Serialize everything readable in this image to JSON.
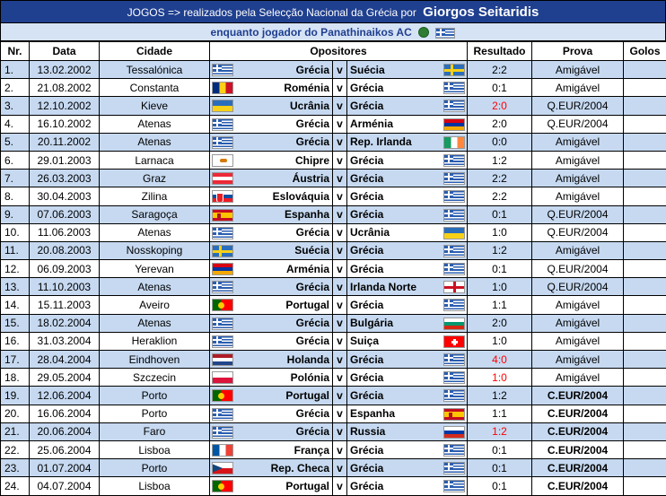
{
  "title": {
    "prefix": "JOGOS => realizados pela Selecção Nacional da Grécia por",
    "player": "Giorgos Seitaridis"
  },
  "subtitle": "enquanto jogador do Panathinaikos AC",
  "headers": {
    "nr": "Nr.",
    "data": "Data",
    "cidade": "Cidade",
    "opositores": "Opositores",
    "resultado": "Resultado",
    "prova": "Prova",
    "golos": "Golos"
  },
  "matches": [
    {
      "nr": "1.",
      "data": "13.02.2002",
      "cidade": "Tessalónica",
      "home": "Grécia",
      "home_flag": "gre",
      "vs": "v",
      "away": "Suécia",
      "away_flag": "swe",
      "resultado": "2:2",
      "result_red": false,
      "prova": "Amigável",
      "prova_bold": false,
      "golos": ""
    },
    {
      "nr": "2.",
      "data": "21.08.2002",
      "cidade": "Constanta",
      "home": "Roménia",
      "home_flag": "rom",
      "vs": "v",
      "away": "Grécia",
      "away_flag": "gre",
      "resultado": "0:1",
      "result_red": false,
      "prova": "Amigável",
      "prova_bold": false,
      "golos": ""
    },
    {
      "nr": "3.",
      "data": "12.10.2002",
      "cidade": "Kieve",
      "home": "Ucrânia",
      "home_flag": "ukr",
      "vs": "v",
      "away": "Grécia",
      "away_flag": "gre",
      "resultado": "2:0",
      "result_red": true,
      "prova": "Q.EUR/2004",
      "prova_bold": false,
      "golos": ""
    },
    {
      "nr": "4.",
      "data": "16.10.2002",
      "cidade": "Atenas",
      "home": "Grécia",
      "home_flag": "gre",
      "vs": "v",
      "away": "Arménia",
      "away_flag": "arm",
      "resultado": "2:0",
      "result_red": false,
      "prova": "Q.EUR/2004",
      "prova_bold": false,
      "golos": ""
    },
    {
      "nr": "5.",
      "data": "20.11.2002",
      "cidade": "Atenas",
      "home": "Grécia",
      "home_flag": "gre",
      "vs": "v",
      "away": "Rep. Irlanda",
      "away_flag": "irl",
      "resultado": "0:0",
      "result_red": false,
      "prova": "Amigável",
      "prova_bold": false,
      "golos": ""
    },
    {
      "nr": "6.",
      "data": "29.01.2003",
      "cidade": "Larnaca",
      "home": "Chipre",
      "home_flag": "cyp",
      "vs": "v",
      "away": "Grécia",
      "away_flag": "gre",
      "resultado": "1:2",
      "result_red": false,
      "prova": "Amigável",
      "prova_bold": false,
      "golos": ""
    },
    {
      "nr": "7.",
      "data": "26.03.2003",
      "cidade": "Graz",
      "home": "Áustria",
      "home_flag": "aut",
      "vs": "v",
      "away": "Grécia",
      "away_flag": "gre",
      "resultado": "2:2",
      "result_red": false,
      "prova": "Amigável",
      "prova_bold": false,
      "golos": ""
    },
    {
      "nr": "8.",
      "data": "30.04.2003",
      "cidade": "Zilina",
      "home": "Eslováquia",
      "home_flag": "svk",
      "vs": "v",
      "away": "Grécia",
      "away_flag": "gre",
      "resultado": "2:2",
      "result_red": false,
      "prova": "Amigável",
      "prova_bold": false,
      "golos": ""
    },
    {
      "nr": "9.",
      "data": "07.06.2003",
      "cidade": "Saragoça",
      "home": "Espanha",
      "home_flag": "esp",
      "vs": "v",
      "away": "Grécia",
      "away_flag": "gre",
      "resultado": "0:1",
      "result_red": false,
      "prova": "Q.EUR/2004",
      "prova_bold": false,
      "golos": ""
    },
    {
      "nr": "10.",
      "data": "11.06.2003",
      "cidade": "Atenas",
      "home": "Grécia",
      "home_flag": "gre",
      "vs": "v",
      "away": "Ucrânia",
      "away_flag": "ukr",
      "resultado": "1:0",
      "result_red": false,
      "prova": "Q.EUR/2004",
      "prova_bold": false,
      "golos": ""
    },
    {
      "nr": "11.",
      "data": "20.08.2003",
      "cidade": "Nosskoping",
      "home": "Suécia",
      "home_flag": "swe",
      "vs": "v",
      "away": "Grécia",
      "away_flag": "gre",
      "resultado": "1:2",
      "result_red": false,
      "prova": "Amigável",
      "prova_bold": false,
      "golos": ""
    },
    {
      "nr": "12.",
      "data": "06.09.2003",
      "cidade": "Yerevan",
      "home": "Arménia",
      "home_flag": "arm",
      "vs": "v",
      "away": "Grécia",
      "away_flag": "gre",
      "resultado": "0:1",
      "result_red": false,
      "prova": "Q.EUR/2004",
      "prova_bold": false,
      "golos": ""
    },
    {
      "nr": "13.",
      "data": "11.10.2003",
      "cidade": "Atenas",
      "home": "Grécia",
      "home_flag": "gre",
      "vs": "v",
      "away": "Irlanda Norte",
      "away_flag": "eng",
      "resultado": "1:0",
      "result_red": false,
      "prova": "Q.EUR/2004",
      "prova_bold": false,
      "golos": ""
    },
    {
      "nr": "14.",
      "data": "15.11.2003",
      "cidade": "Aveiro",
      "home": "Portugal",
      "home_flag": "por",
      "vs": "v",
      "away": "Grécia",
      "away_flag": "gre",
      "resultado": "1:1",
      "result_red": false,
      "prova": "Amigável",
      "prova_bold": false,
      "golos": ""
    },
    {
      "nr": "15.",
      "data": "18.02.2004",
      "cidade": "Atenas",
      "home": "Grécia",
      "home_flag": "gre",
      "vs": "v",
      "away": "Bulgária",
      "away_flag": "bul",
      "resultado": "2:0",
      "result_red": false,
      "prova": "Amigável",
      "prova_bold": false,
      "golos": ""
    },
    {
      "nr": "16.",
      "data": "31.03.2004",
      "cidade": "Heraklion",
      "home": "Grécia",
      "home_flag": "gre",
      "vs": "v",
      "away": "Suiça",
      "away_flag": "sui",
      "resultado": "1:0",
      "result_red": false,
      "prova": "Amigável",
      "prova_bold": false,
      "golos": ""
    },
    {
      "nr": "17.",
      "data": "28.04.2004",
      "cidade": "Eindhoven",
      "home": "Holanda",
      "home_flag": "ned",
      "vs": "v",
      "away": "Grécia",
      "away_flag": "gre",
      "resultado": "4:0",
      "result_red": true,
      "prova": "Amigável",
      "prova_bold": false,
      "golos": ""
    },
    {
      "nr": "18.",
      "data": "29.05.2004",
      "cidade": "Szczecin",
      "home": "Polónia",
      "home_flag": "pol",
      "vs": "v",
      "away": "Grécia",
      "away_flag": "gre",
      "resultado": "1:0",
      "result_red": true,
      "prova": "Amigável",
      "prova_bold": false,
      "golos": ""
    },
    {
      "nr": "19.",
      "data": "12.06.2004",
      "cidade": "Porto",
      "home": "Portugal",
      "home_flag": "por",
      "vs": "v",
      "away": "Grécia",
      "away_flag": "gre",
      "resultado": "1:2",
      "result_red": false,
      "prova": "C.EUR/2004",
      "prova_bold": true,
      "golos": ""
    },
    {
      "nr": "20.",
      "data": "16.06.2004",
      "cidade": "Porto",
      "home": "Grécia",
      "home_flag": "gre",
      "vs": "v",
      "away": "Espanha",
      "away_flag": "esp",
      "resultado": "1:1",
      "result_red": false,
      "prova": "C.EUR/2004",
      "prova_bold": true,
      "golos": ""
    },
    {
      "nr": "21.",
      "data": "20.06.2004",
      "cidade": "Faro",
      "home": "Grécia",
      "home_flag": "gre",
      "vs": "v",
      "away": "Russia",
      "away_flag": "rus",
      "resultado": "1:2",
      "result_red": true,
      "prova": "C.EUR/2004",
      "prova_bold": true,
      "golos": ""
    },
    {
      "nr": "22.",
      "data": "25.06.2004",
      "cidade": "Lisboa",
      "home": "França",
      "home_flag": "fra",
      "vs": "v",
      "away": "Grécia",
      "away_flag": "gre",
      "resultado": "0:1",
      "result_red": false,
      "prova": "C.EUR/2004",
      "prova_bold": true,
      "golos": ""
    },
    {
      "nr": "23.",
      "data": "01.07.2004",
      "cidade": "Porto",
      "home": "Rep. Checa",
      "home_flag": "cze",
      "vs": "v",
      "away": "Grécia",
      "away_flag": "gre",
      "resultado": "0:1",
      "result_red": false,
      "prova": "C.EUR/2004",
      "prova_bold": true,
      "golos": ""
    },
    {
      "nr": "24.",
      "data": "04.07.2004",
      "cidade": "Lisboa",
      "home": "Portugal",
      "home_flag": "por",
      "vs": "v",
      "away": "Grécia",
      "away_flag": "gre",
      "resultado": "0:1",
      "result_red": false,
      "prova": "C.EUR/2004",
      "prova_bold": true,
      "golos": ""
    }
  ]
}
